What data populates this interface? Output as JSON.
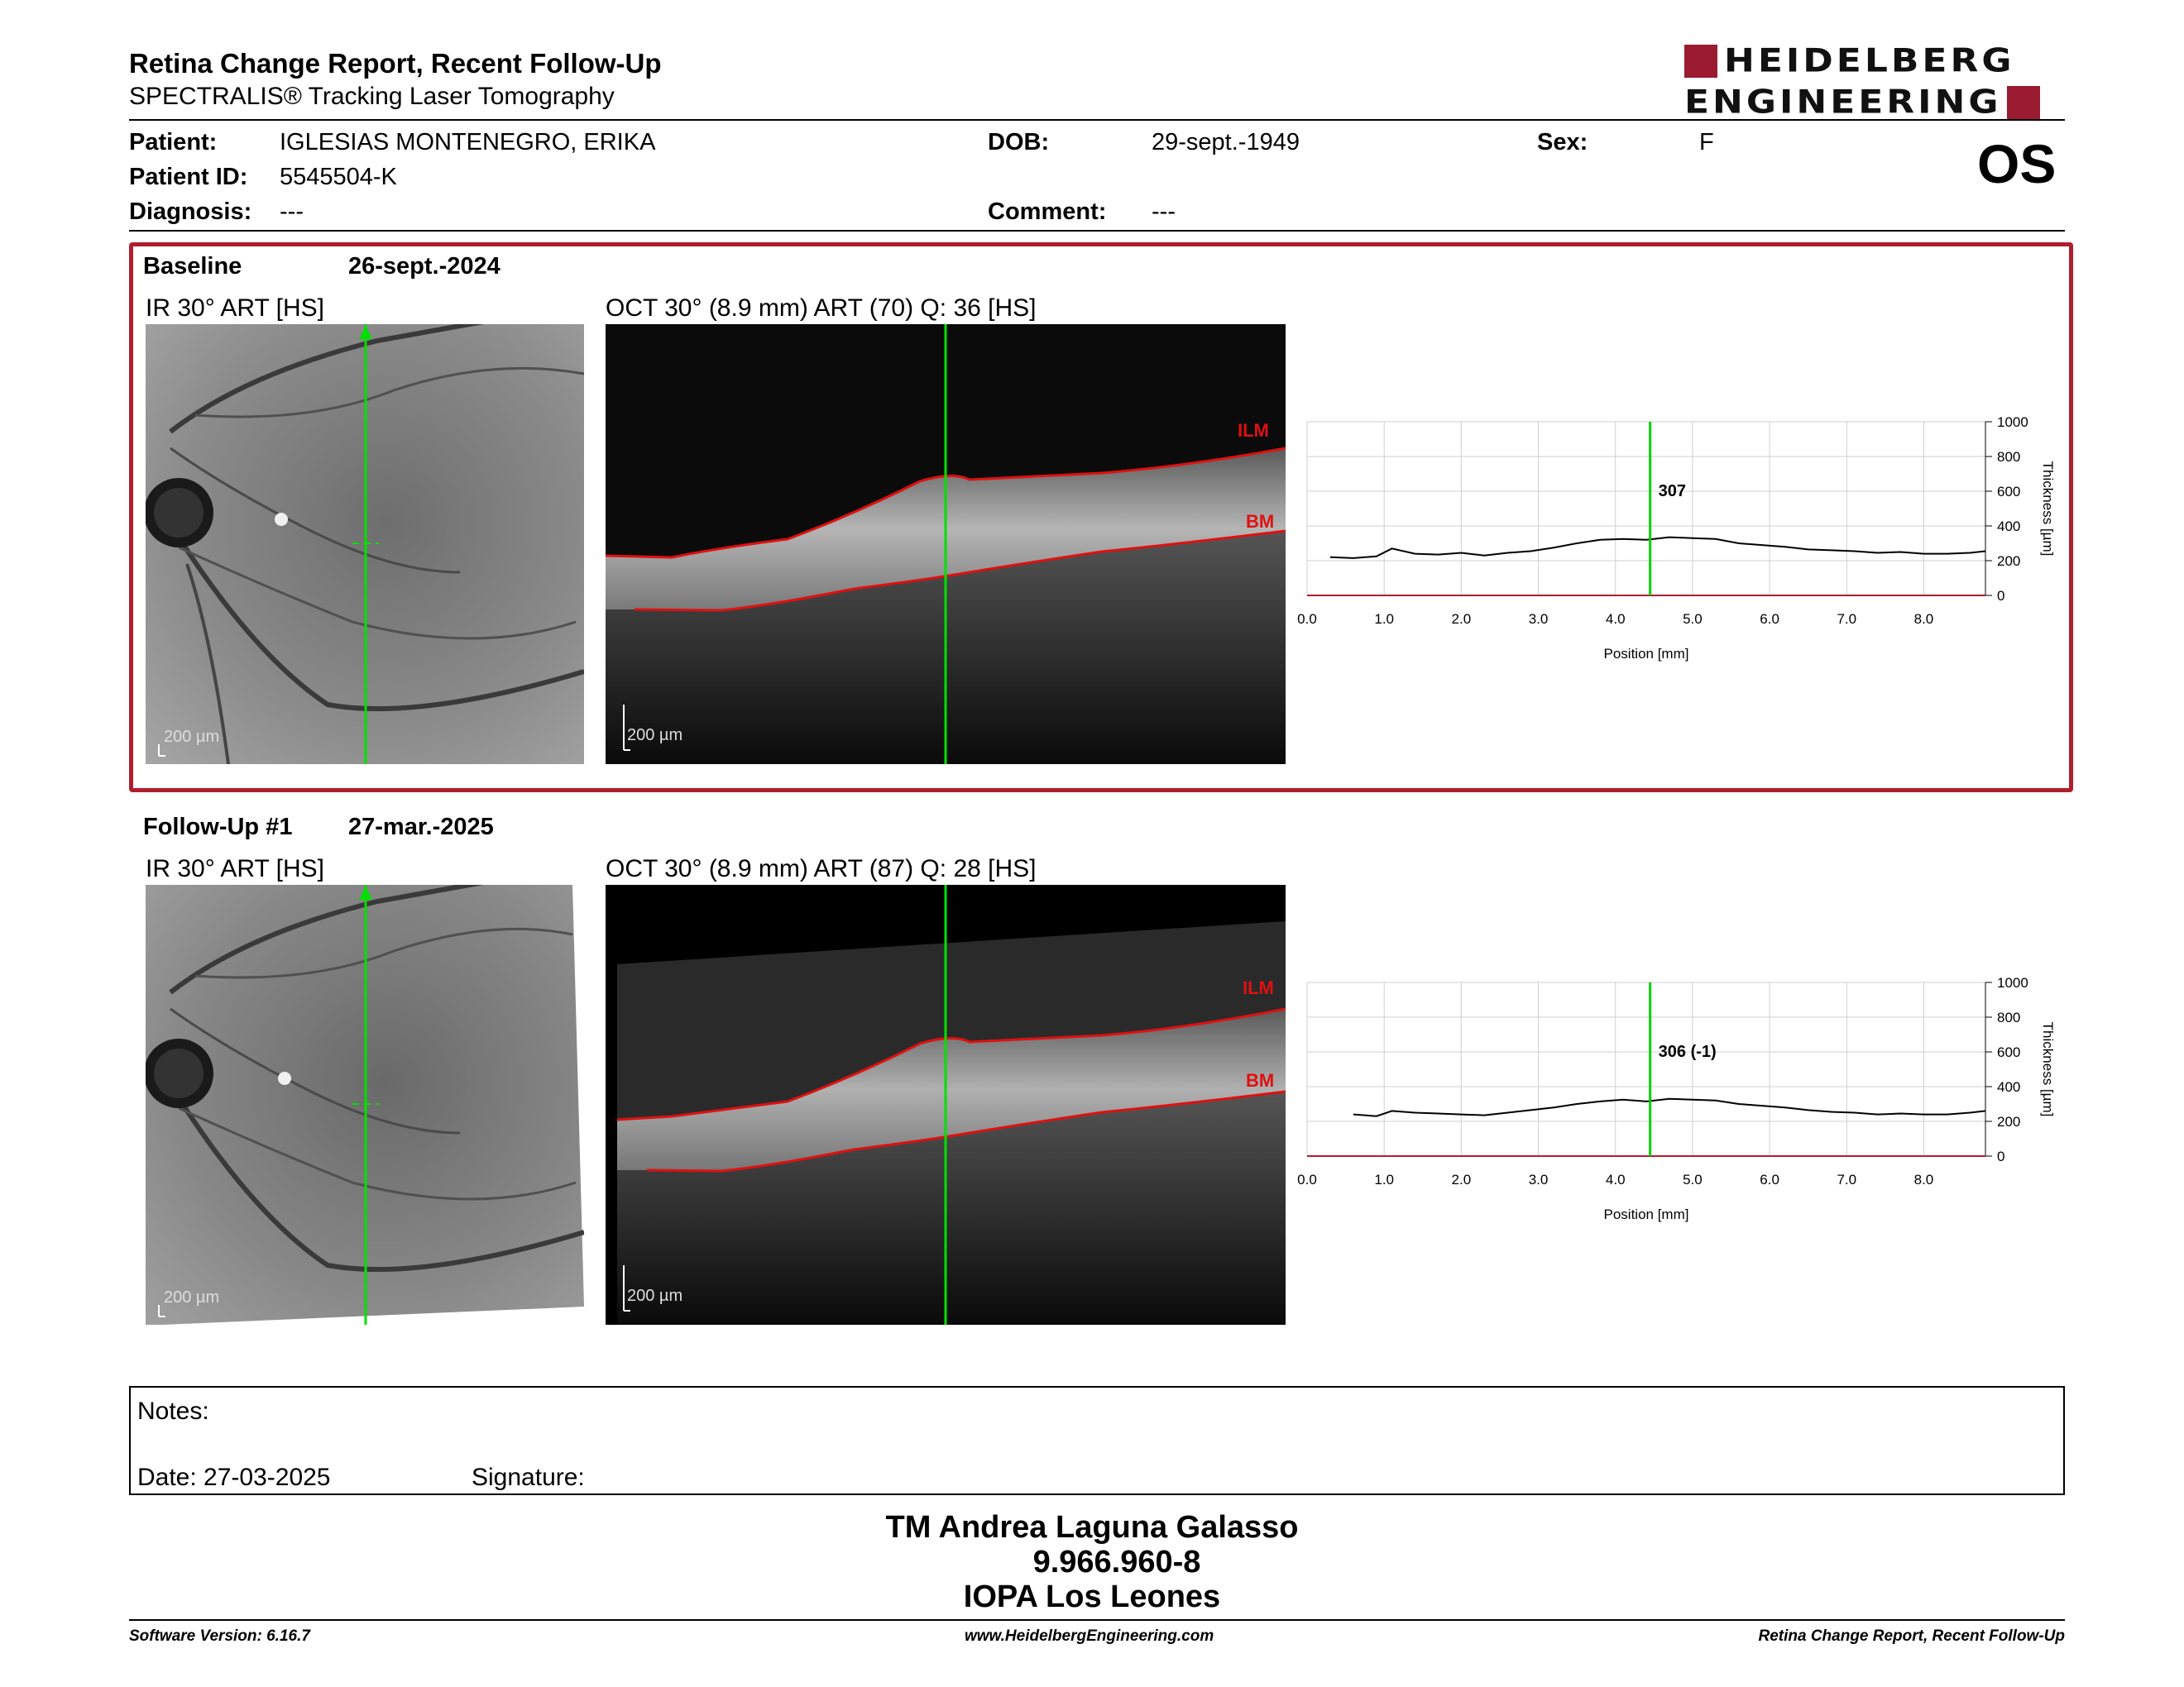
{
  "header": {
    "title": "Retina Change Report, Recent Follow-Up",
    "subtitle": "SPECTRALIS® Tracking Laser Tomography",
    "logo_line1": "HEIDELBERG",
    "logo_line2": "ENGINEERING",
    "eye": "OS"
  },
  "patient": {
    "patient_label": "Patient:",
    "patient_value": "IGLESIAS MONTENEGRO, ERIKA",
    "dob_label": "DOB:",
    "dob_value": "29-sept.-1949",
    "sex_label": "Sex:",
    "sex_value": "F",
    "id_label": "Patient ID:",
    "id_value": "5545504-K",
    "diagnosis_label": "Diagnosis:",
    "diagnosis_value": "---",
    "comment_label": "Comment:",
    "comment_value": "---"
  },
  "exams": [
    {
      "name": "Baseline",
      "date": "26-sept.-2024",
      "ir_label": "IR 30° ART [HS]",
      "oct_label": "OCT 30° (8.9 mm) ART (70) Q: 36 [HS]",
      "scale": "200 µm",
      "ilm": "ILM",
      "bm": "BM",
      "marker_value": "307"
    },
    {
      "name": "Follow-Up #1",
      "date": "27-mar.-2025",
      "ir_label": "IR 30° ART [HS]",
      "oct_label": "OCT 30° (8.9 mm) ART (87) Q: 28 [HS]",
      "scale": "200 µm",
      "ilm": "ILM",
      "bm": "BM",
      "marker_value": "306 (-1)"
    }
  ],
  "chart_data": [
    {
      "type": "line",
      "xlabel": "Position [mm]",
      "ylabel": "Thickness [µm]",
      "xlim": [
        0,
        8.8
      ],
      "ylim": [
        0,
        1000
      ],
      "x_ticks": [
        "0.0",
        "1.0",
        "2.0",
        "3.0",
        "4.0",
        "5.0",
        "6.0",
        "7.0",
        "8.0"
      ],
      "y_ticks": [
        "0",
        "200",
        "400",
        "600",
        "800",
        "1000"
      ],
      "marker_x": 4.45,
      "marker_label": "307",
      "series": [
        {
          "x": [
            0.3,
            0.6,
            0.9,
            1.1,
            1.4,
            1.7,
            2.0,
            2.3,
            2.6,
            2.9,
            3.2,
            3.5,
            3.8,
            4.1,
            4.4,
            4.7,
            5.0,
            5.3,
            5.6,
            5.9,
            6.2,
            6.5,
            6.8,
            7.1,
            7.4,
            7.7,
            8.0,
            8.3,
            8.6,
            8.8
          ],
          "y": [
            220,
            215,
            225,
            270,
            240,
            235,
            245,
            230,
            245,
            255,
            275,
            300,
            320,
            325,
            320,
            335,
            330,
            325,
            300,
            290,
            280,
            265,
            260,
            255,
            245,
            250,
            240,
            240,
            245,
            255
          ]
        }
      ]
    },
    {
      "type": "line",
      "xlabel": "Position [mm]",
      "ylabel": "Thickness [µm]",
      "xlim": [
        0,
        8.8
      ],
      "ylim": [
        0,
        1000
      ],
      "x_ticks": [
        "0.0",
        "1.0",
        "2.0",
        "3.0",
        "4.0",
        "5.0",
        "6.0",
        "7.0",
        "8.0"
      ],
      "y_ticks": [
        "0",
        "200",
        "400",
        "600",
        "800",
        "1000"
      ],
      "marker_x": 4.45,
      "marker_label": "306 (-1)",
      "series": [
        {
          "x": [
            0.6,
            0.9,
            1.1,
            1.4,
            1.7,
            2.0,
            2.3,
            2.6,
            2.9,
            3.2,
            3.5,
            3.8,
            4.1,
            4.4,
            4.7,
            5.0,
            5.3,
            5.6,
            5.9,
            6.2,
            6.5,
            6.8,
            7.1,
            7.4,
            7.7,
            8.0,
            8.3,
            8.6,
            8.8
          ],
          "y": [
            240,
            230,
            260,
            250,
            245,
            240,
            235,
            250,
            265,
            280,
            300,
            315,
            325,
            315,
            330,
            325,
            320,
            300,
            290,
            280,
            265,
            255,
            250,
            240,
            245,
            240,
            240,
            250,
            260
          ]
        }
      ]
    }
  ],
  "notes": {
    "notes_label": "Notes:",
    "date_label": "Date: 27-03-2025",
    "signature_label": "Signature:"
  },
  "signature": {
    "name": "TM Andrea Laguna Galasso",
    "id": "9.966.960-8",
    "org": "IOPA Los Leones"
  },
  "footer": {
    "software": "Software Version: 6.16.7",
    "website": "www.HeidelbergEngineering.com",
    "report": "Retina Change Report, Recent Follow-Up"
  }
}
